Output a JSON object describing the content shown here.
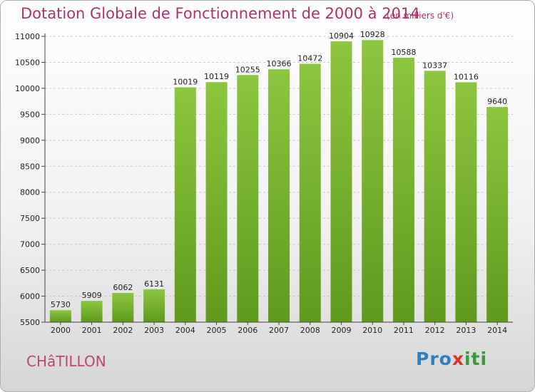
{
  "chart_data": {
    "type": "bar",
    "title": "Dotation Globale de Fonctionnement de 2000 à 2014",
    "subtitle": "(en milliers d'€)",
    "categories": [
      "2000",
      "2001",
      "2002",
      "2003",
      "2004",
      "2005",
      "2006",
      "2007",
      "2008",
      "2009",
      "2010",
      "2011",
      "2012",
      "2013",
      "2014"
    ],
    "values": [
      5730,
      5909,
      6062,
      6131,
      10019,
      10119,
      10255,
      10366,
      10472,
      10904,
      10928,
      10588,
      10337,
      10116,
      9640
    ],
    "ylim": [
      5500,
      11000
    ],
    "yticks": [
      5500,
      6000,
      6500,
      7000,
      7500,
      8000,
      8500,
      9000,
      9500,
      10000,
      10500,
      11000
    ],
    "grid": true,
    "bar_color": "#8cc63f",
    "bar_color_dark": "#5f9a1e"
  },
  "footer": {
    "city": "CHâTILLON",
    "logo_p": "Pro",
    "logo_x": "x",
    "logo_i": "iti"
  }
}
